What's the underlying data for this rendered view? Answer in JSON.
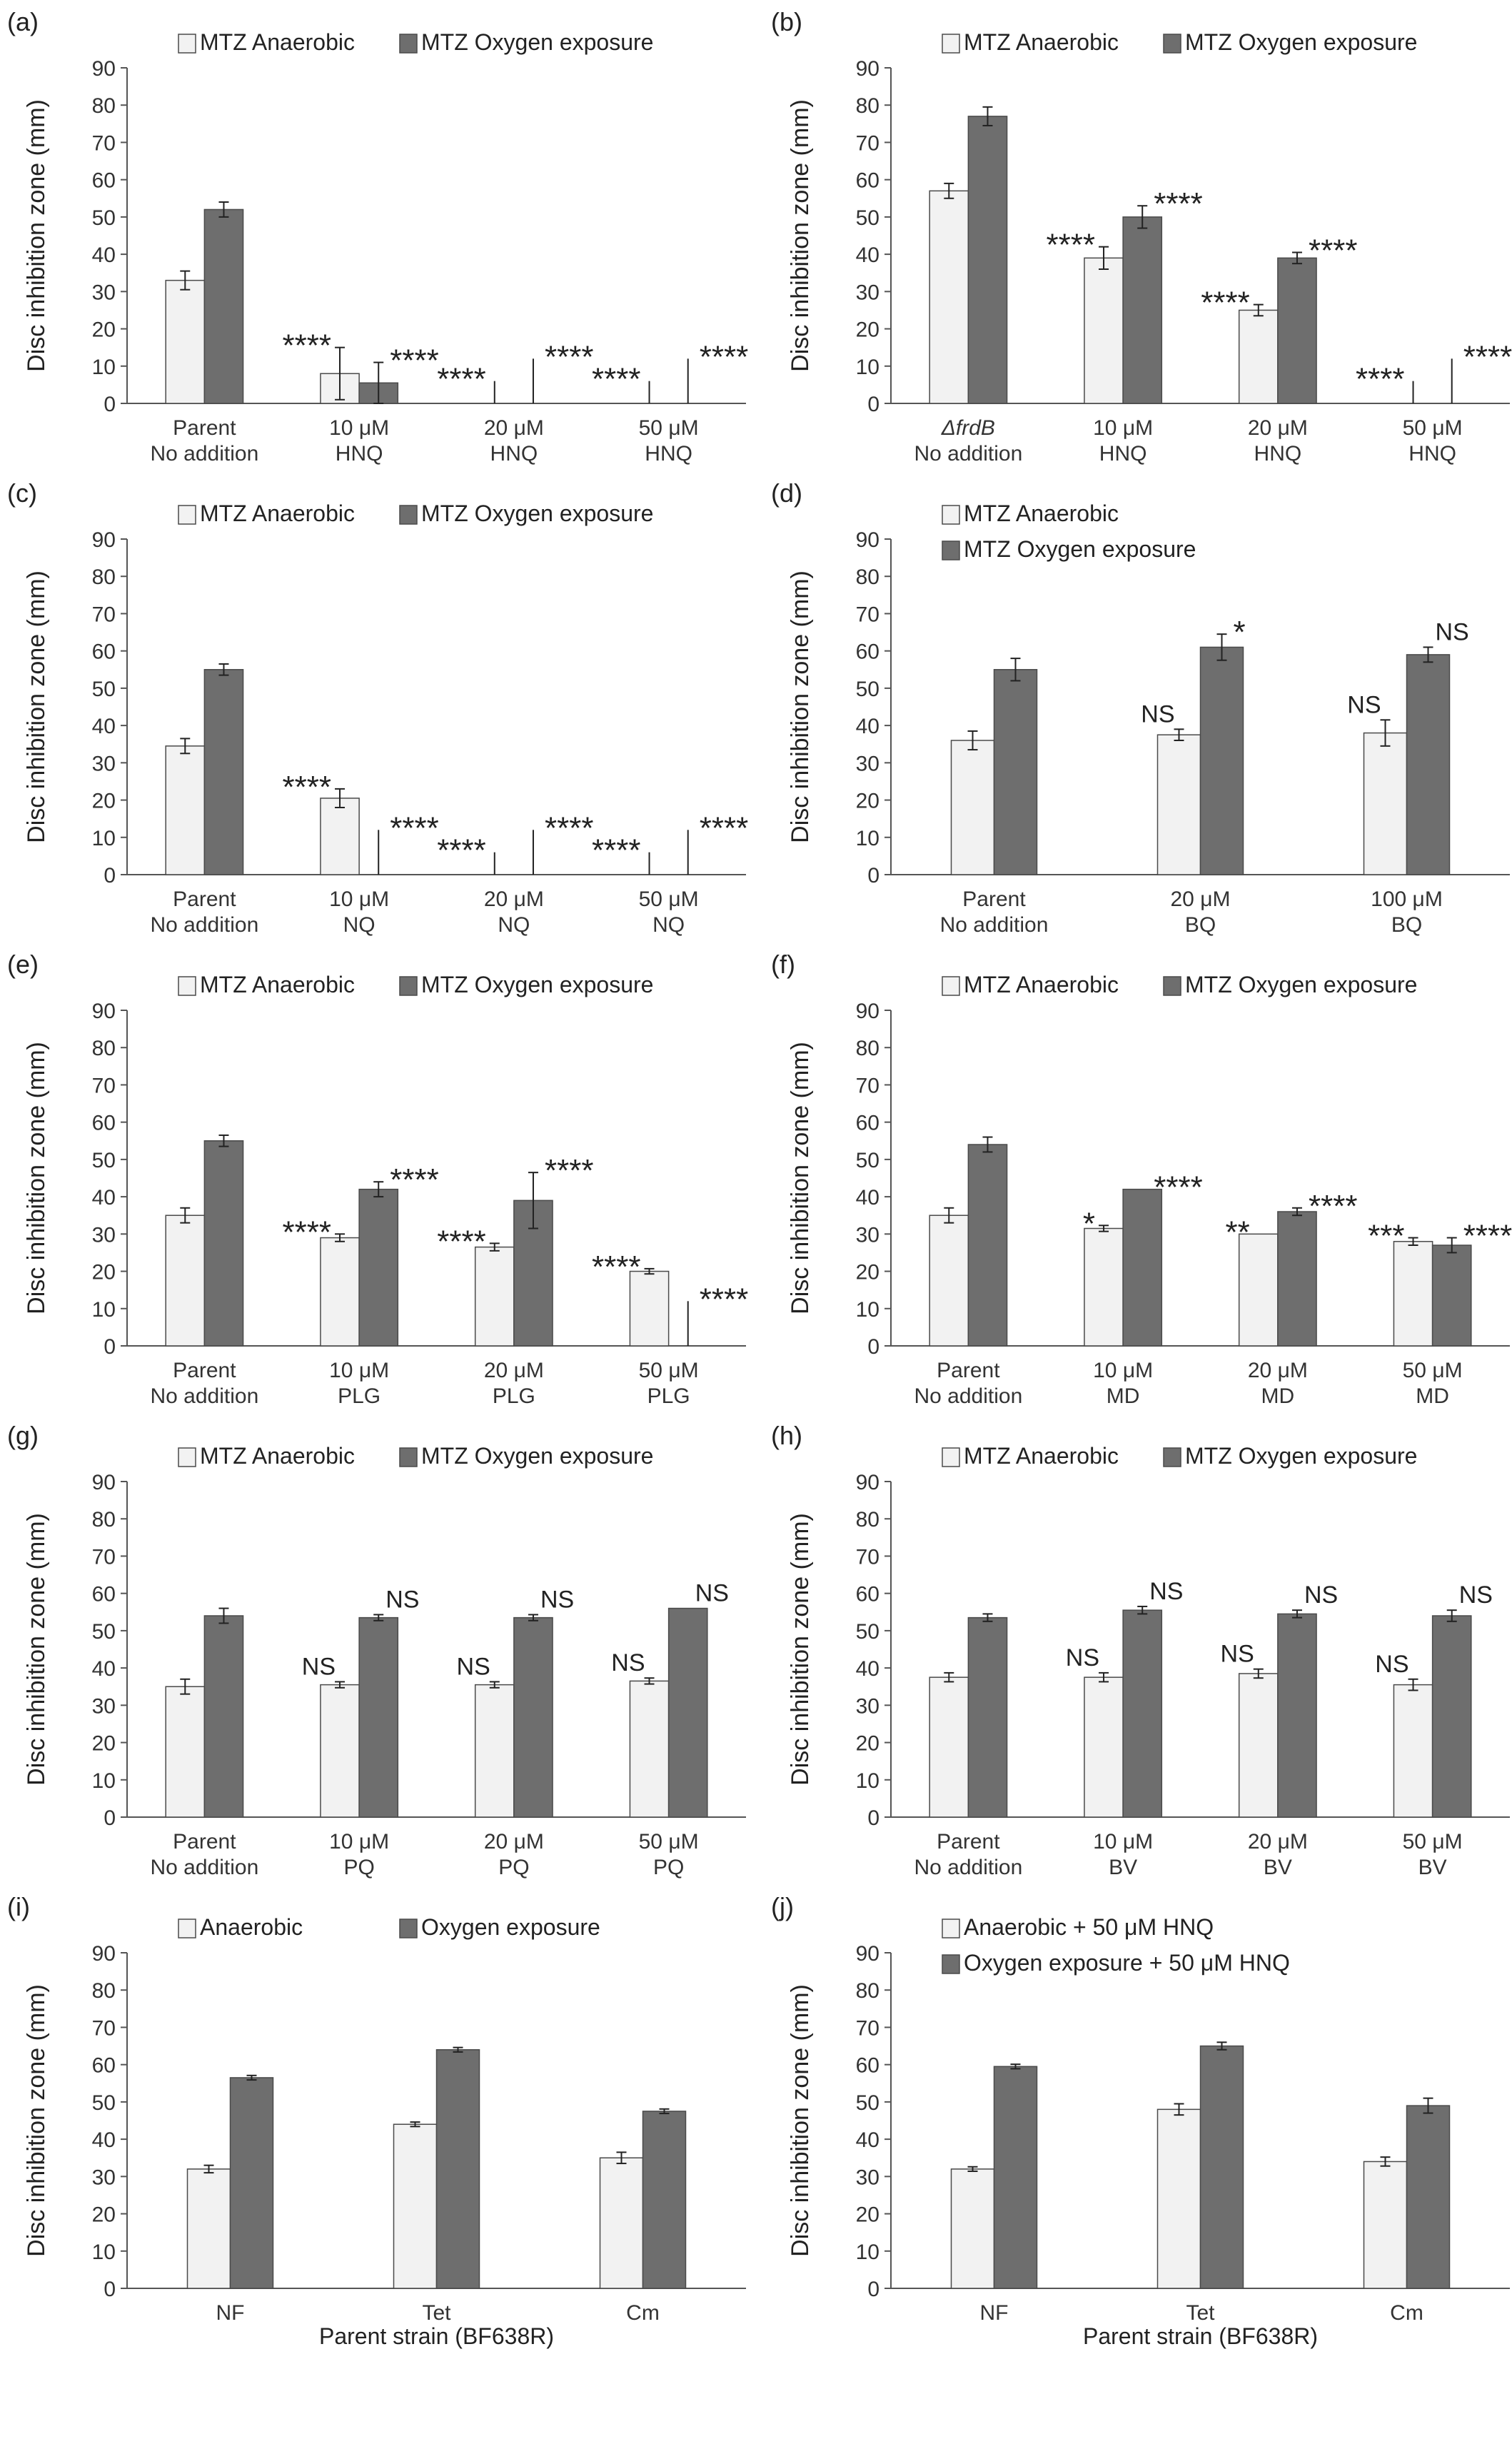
{
  "legend_styles": {
    "anaerobic_fill": "#f2f2f2",
    "oxygen_fill": "#6e6e6e",
    "edge": "#4a4a4a"
  },
  "chart_data": [
    {
      "panel": "(a)",
      "type": "bar",
      "ylabel": "Disc inhibition zone (mm)",
      "xlabel": "",
      "ylim": [
        0,
        90
      ],
      "yticks": [
        0,
        10,
        20,
        30,
        40,
        50,
        60,
        70,
        80,
        90
      ],
      "legend_layout": "row",
      "categories": [
        [
          "Parent",
          "No addition"
        ],
        [
          "10 μM",
          "HNQ"
        ],
        [
          "20 μM",
          "HNQ"
        ],
        [
          "50 μM",
          "HNQ"
        ]
      ],
      "series": [
        {
          "name": "MTZ Anaerobic",
          "values": [
            33,
            8,
            0,
            0
          ],
          "errors": [
            2.5,
            7,
            6,
            6
          ],
          "annotations": [
            "",
            "****",
            "****",
            "****"
          ]
        },
        {
          "name": "MTZ Oxygen exposure",
          "values": [
            52,
            5.5,
            0,
            0
          ],
          "errors": [
            2,
            5.5,
            12,
            12
          ],
          "annotations": [
            "",
            "****",
            "****",
            "****"
          ]
        }
      ]
    },
    {
      "panel": "(b)",
      "type": "bar",
      "ylabel": "Disc inhibition zone (mm)",
      "xlabel": "",
      "ylim": [
        0,
        90
      ],
      "yticks": [
        0,
        10,
        20,
        30,
        40,
        50,
        60,
        70,
        80,
        90
      ],
      "legend_layout": "row",
      "categories": [
        [
          "ΔfrdB",
          "No addition"
        ],
        [
          "10 μM",
          "HNQ"
        ],
        [
          "20 μM",
          "HNQ"
        ],
        [
          "50 μM",
          "HNQ"
        ]
      ],
      "series": [
        {
          "name": "MTZ Anaerobic",
          "values": [
            57,
            39,
            25,
            0
          ],
          "errors": [
            2,
            3,
            1.5,
            6
          ],
          "annotations": [
            "",
            "****",
            "****",
            "****"
          ]
        },
        {
          "name": "MTZ Oxygen exposure",
          "values": [
            77,
            50,
            39,
            0
          ],
          "errors": [
            2.5,
            3,
            1.5,
            12
          ],
          "annotations": [
            "",
            "****",
            "****",
            "****"
          ]
        }
      ]
    },
    {
      "panel": "(c)",
      "type": "bar",
      "ylabel": "Disc inhibition zone (mm)",
      "xlabel": "",
      "ylim": [
        0,
        90
      ],
      "yticks": [
        0,
        10,
        20,
        30,
        40,
        50,
        60,
        70,
        80,
        90
      ],
      "legend_layout": "row",
      "categories": [
        [
          "Parent",
          "No addition"
        ],
        [
          "10 μM",
          "NQ"
        ],
        [
          "20 μM",
          "NQ"
        ],
        [
          "50 μM",
          "NQ"
        ]
      ],
      "series": [
        {
          "name": "MTZ Anaerobic",
          "values": [
            34.5,
            20.5,
            0,
            0
          ],
          "errors": [
            2,
            2.5,
            6,
            6
          ],
          "annotations": [
            "",
            "****",
            "****",
            "****"
          ]
        },
        {
          "name": "MTZ Oxygen exposure",
          "values": [
            55,
            0,
            0,
            0
          ],
          "errors": [
            1.5,
            12,
            12,
            12
          ],
          "annotations": [
            "",
            "****",
            "****",
            "****"
          ]
        }
      ]
    },
    {
      "panel": "(d)",
      "type": "bar",
      "ylabel": "Disc inhibition zone (mm)",
      "xlabel": "",
      "ylim": [
        0,
        90
      ],
      "yticks": [
        0,
        10,
        20,
        30,
        40,
        50,
        60,
        70,
        80,
        90
      ],
      "legend_layout": "column",
      "categories": [
        [
          "Parent",
          "No addition"
        ],
        [
          "20 μM",
          "BQ"
        ],
        [
          "100 μM",
          "BQ"
        ]
      ],
      "series": [
        {
          "name": "MTZ Anaerobic",
          "values": [
            36,
            37.5,
            38
          ],
          "errors": [
            2.5,
            1.5,
            3.5
          ],
          "annotations": [
            "",
            "NS",
            "NS"
          ]
        },
        {
          "name": "MTZ Oxygen exposure",
          "values": [
            55,
            61,
            59
          ],
          "errors": [
            3,
            3.5,
            2
          ],
          "annotations": [
            "",
            "*",
            "NS"
          ]
        }
      ]
    },
    {
      "panel": "(e)",
      "type": "bar",
      "ylabel": "Disc inhibition zone (mm)",
      "xlabel": "",
      "ylim": [
        0,
        90
      ],
      "yticks": [
        0,
        10,
        20,
        30,
        40,
        50,
        60,
        70,
        80,
        90
      ],
      "legend_layout": "row",
      "categories": [
        [
          "Parent",
          "No addition"
        ],
        [
          "10 μM",
          "PLG"
        ],
        [
          "20 μM",
          "PLG"
        ],
        [
          "50 μM",
          "PLG"
        ]
      ],
      "series": [
        {
          "name": "MTZ Anaerobic",
          "values": [
            35,
            29,
            26.5,
            20
          ],
          "errors": [
            2,
            1,
            1,
            0.7
          ],
          "annotations": [
            "",
            "****",
            "****",
            "****"
          ]
        },
        {
          "name": "MTZ Oxygen exposure",
          "values": [
            55,
            42,
            39,
            0
          ],
          "errors": [
            1.5,
            2,
            7.5,
            12
          ],
          "annotations": [
            "",
            "****",
            "****",
            "****"
          ]
        }
      ]
    },
    {
      "panel": "(f)",
      "type": "bar",
      "ylabel": "Disc inhibition zone (mm)",
      "xlabel": "",
      "ylim": [
        0,
        90
      ],
      "yticks": [
        0,
        10,
        20,
        30,
        40,
        50,
        60,
        70,
        80,
        90
      ],
      "legend_layout": "row",
      "categories": [
        [
          "Parent",
          "No addition"
        ],
        [
          "10 μM",
          "MD"
        ],
        [
          "20 μM",
          "MD"
        ],
        [
          "50 μM",
          "MD"
        ]
      ],
      "series": [
        {
          "name": "MTZ Anaerobic",
          "values": [
            35,
            31.5,
            30,
            28
          ],
          "errors": [
            2,
            0.8,
            0,
            1
          ],
          "annotations": [
            "",
            "*",
            "**",
            "***"
          ]
        },
        {
          "name": "MTZ Oxygen exposure",
          "values": [
            54,
            42,
            36,
            27
          ],
          "errors": [
            2,
            0,
            1,
            2
          ],
          "annotations": [
            "",
            "****",
            "****",
            "****"
          ]
        }
      ]
    },
    {
      "panel": "(g)",
      "type": "bar",
      "ylabel": "Disc inhibition zone (mm)",
      "xlabel": "",
      "ylim": [
        0,
        90
      ],
      "yticks": [
        0,
        10,
        20,
        30,
        40,
        50,
        60,
        70,
        80,
        90
      ],
      "legend_layout": "row",
      "categories": [
        [
          "Parent",
          "No addition"
        ],
        [
          "10 μM",
          "PQ"
        ],
        [
          "20 μM",
          "PQ"
        ],
        [
          "50 μM",
          "PQ"
        ]
      ],
      "series": [
        {
          "name": "MTZ Anaerobic",
          "values": [
            35,
            35.5,
            35.5,
            36.5
          ],
          "errors": [
            2,
            0.8,
            0.8,
            0.8
          ],
          "annotations": [
            "",
            "NS",
            "NS",
            "NS"
          ]
        },
        {
          "name": "MTZ Oxygen exposure",
          "values": [
            54,
            53.5,
            53.5,
            56
          ],
          "errors": [
            2,
            0.8,
            0.8,
            0
          ],
          "annotations": [
            "",
            "NS",
            "NS",
            "NS"
          ]
        }
      ]
    },
    {
      "panel": "(h)",
      "type": "bar",
      "ylabel": "Disc inhibition zone (mm)",
      "xlabel": "",
      "ylim": [
        0,
        90
      ],
      "yticks": [
        0,
        10,
        20,
        30,
        40,
        50,
        60,
        70,
        80,
        90
      ],
      "legend_layout": "row",
      "categories": [
        [
          "Parent",
          "No addition"
        ],
        [
          "10 μM",
          "BV"
        ],
        [
          "20 μM",
          "BV"
        ],
        [
          "50 μM",
          "BV"
        ]
      ],
      "series": [
        {
          "name": "MTZ Anaerobic",
          "values": [
            37.5,
            37.5,
            38.5,
            35.5
          ],
          "errors": [
            1.2,
            1.2,
            1.2,
            1.5
          ],
          "annotations": [
            "",
            "NS",
            "NS",
            "NS"
          ]
        },
        {
          "name": "MTZ Oxygen exposure",
          "values": [
            53.5,
            55.5,
            54.5,
            54
          ],
          "errors": [
            1,
            1,
            1,
            1.5
          ],
          "annotations": [
            "",
            "NS",
            "NS",
            "NS"
          ]
        }
      ]
    },
    {
      "panel": "(i)",
      "type": "bar",
      "ylabel": "Disc inhibition zone (mm)",
      "xlabel": "Parent strain (BF638R)",
      "ylim": [
        0,
        90
      ],
      "yticks": [
        0,
        10,
        20,
        30,
        40,
        50,
        60,
        70,
        80,
        90
      ],
      "legend_layout": "row",
      "categories": [
        [
          "NF"
        ],
        [
          "Tet"
        ],
        [
          "Cm"
        ]
      ],
      "series": [
        {
          "name": "Anaerobic",
          "values": [
            32,
            44,
            35
          ],
          "errors": [
            1,
            0.6,
            1.5
          ],
          "annotations": [
            "",
            "",
            ""
          ]
        },
        {
          "name": "Oxygen exposure",
          "values": [
            56.5,
            64,
            47.5
          ],
          "errors": [
            0.6,
            0.6,
            0.6
          ],
          "annotations": [
            "",
            "",
            ""
          ]
        }
      ]
    },
    {
      "panel": "(j)",
      "type": "bar",
      "ylabel": "Disc inhibition zone (mm)",
      "xlabel": "Parent strain (BF638R)",
      "ylim": [
        0,
        90
      ],
      "yticks": [
        0,
        10,
        20,
        30,
        40,
        50,
        60,
        70,
        80,
        90
      ],
      "legend_layout": "column",
      "categories": [
        [
          "NF"
        ],
        [
          "Tet"
        ],
        [
          "Cm"
        ]
      ],
      "series": [
        {
          "name": "Anaerobic + 50 μM HNQ",
          "values": [
            32,
            48,
            34
          ],
          "errors": [
            0.6,
            1.5,
            1.2
          ],
          "annotations": [
            "",
            "",
            ""
          ]
        },
        {
          "name": "Oxygen exposure + 50 μM HNQ",
          "values": [
            59.5,
            65,
            49
          ],
          "errors": [
            0.6,
            1,
            2
          ],
          "annotations": [
            "",
            "",
            ""
          ]
        }
      ]
    }
  ]
}
